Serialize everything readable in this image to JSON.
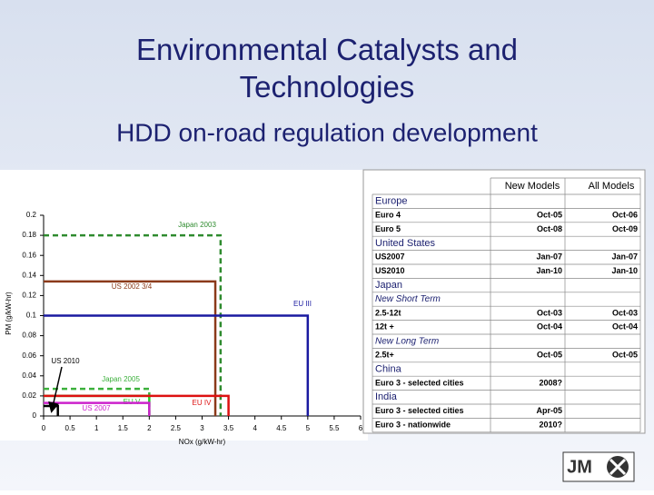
{
  "header": {
    "title": "Environmental Catalysts and Technologies",
    "subtitle": "HDD on-road regulation development"
  },
  "chart_data": {
    "type": "box-step",
    "xlabel": "NOx (g/kW-hr)",
    "ylabel": "PM (g/kW-hr)",
    "xlim": [
      0,
      6
    ],
    "ylim": [
      0,
      0.2
    ],
    "xticks": [
      0,
      0.5,
      1,
      1.5,
      2,
      2.5,
      3,
      3.5,
      4,
      4.5,
      5,
      5.5,
      6
    ],
    "yticks": [
      0,
      0.02,
      0.04,
      0.06,
      0.08,
      0.1,
      0.12,
      0.14,
      0.16,
      0.18,
      0.2
    ],
    "series": [
      {
        "name": "Japan 2003",
        "color": "#2e8b2e",
        "dashed": true,
        "x": 3.35,
        "y": 0.18
      },
      {
        "name": "US 2002 3/4",
        "color": "#8b3a1a",
        "dashed": false,
        "x": 3.25,
        "y": 0.134
      },
      {
        "name": "EU III",
        "color": "#1a1aa0",
        "dashed": false,
        "x": 5,
        "y": 0.1
      },
      {
        "name": "US 2010",
        "color": "#000000",
        "dashed": false,
        "x": 0.27,
        "y": 0.01
      },
      {
        "name": "Japan 2005",
        "color": "#3cb03c",
        "dashed": true,
        "x": 2,
        "y": 0.027
      },
      {
        "name": "EU V",
        "color": "#22cc22",
        "dashed": false,
        "x": 2,
        "y": 0.02
      },
      {
        "name": "EU IV",
        "color": "#dd1111",
        "dashed": false,
        "x": 3.5,
        "y": 0.02
      },
      {
        "name": "US 2007",
        "color": "#cc22cc",
        "dashed": false,
        "x": 2,
        "y": 0.013
      }
    ]
  },
  "table": {
    "columns": [
      "New Models",
      "All Models"
    ],
    "groups": [
      {
        "heading": "Europe",
        "rows": [
          [
            "Euro 4",
            "Oct-05",
            "Oct-06"
          ],
          [
            "Euro 5",
            "Oct-08",
            "Oct-09"
          ]
        ]
      },
      {
        "heading": "United States",
        "rows": [
          [
            "US2007",
            "Jan-07",
            "Jan-07"
          ],
          [
            "US2010",
            "Jan-10",
            "Jan-10"
          ]
        ]
      },
      {
        "heading": "Japan",
        "rows": [
          {
            "sub": "New Short Term"
          },
          [
            "2.5-12t",
            "Oct-03",
            "Oct-03"
          ],
          [
            "12t +",
            "Oct-04",
            "Oct-04"
          ],
          {
            "sub": "New Long Term"
          },
          [
            "2.5t+",
            "Oct-05",
            "Oct-05"
          ]
        ]
      },
      {
        "heading": "China",
        "rows": [
          [
            "Euro 3 - selected cities",
            "2008?",
            null
          ]
        ]
      },
      {
        "heading": "India",
        "rows": [
          [
            "Euro 3 - selected cities",
            "Apr-05",
            null
          ],
          [
            "Euro 3 - nationwide",
            "2010?",
            null
          ]
        ]
      }
    ]
  },
  "logo": "JM"
}
